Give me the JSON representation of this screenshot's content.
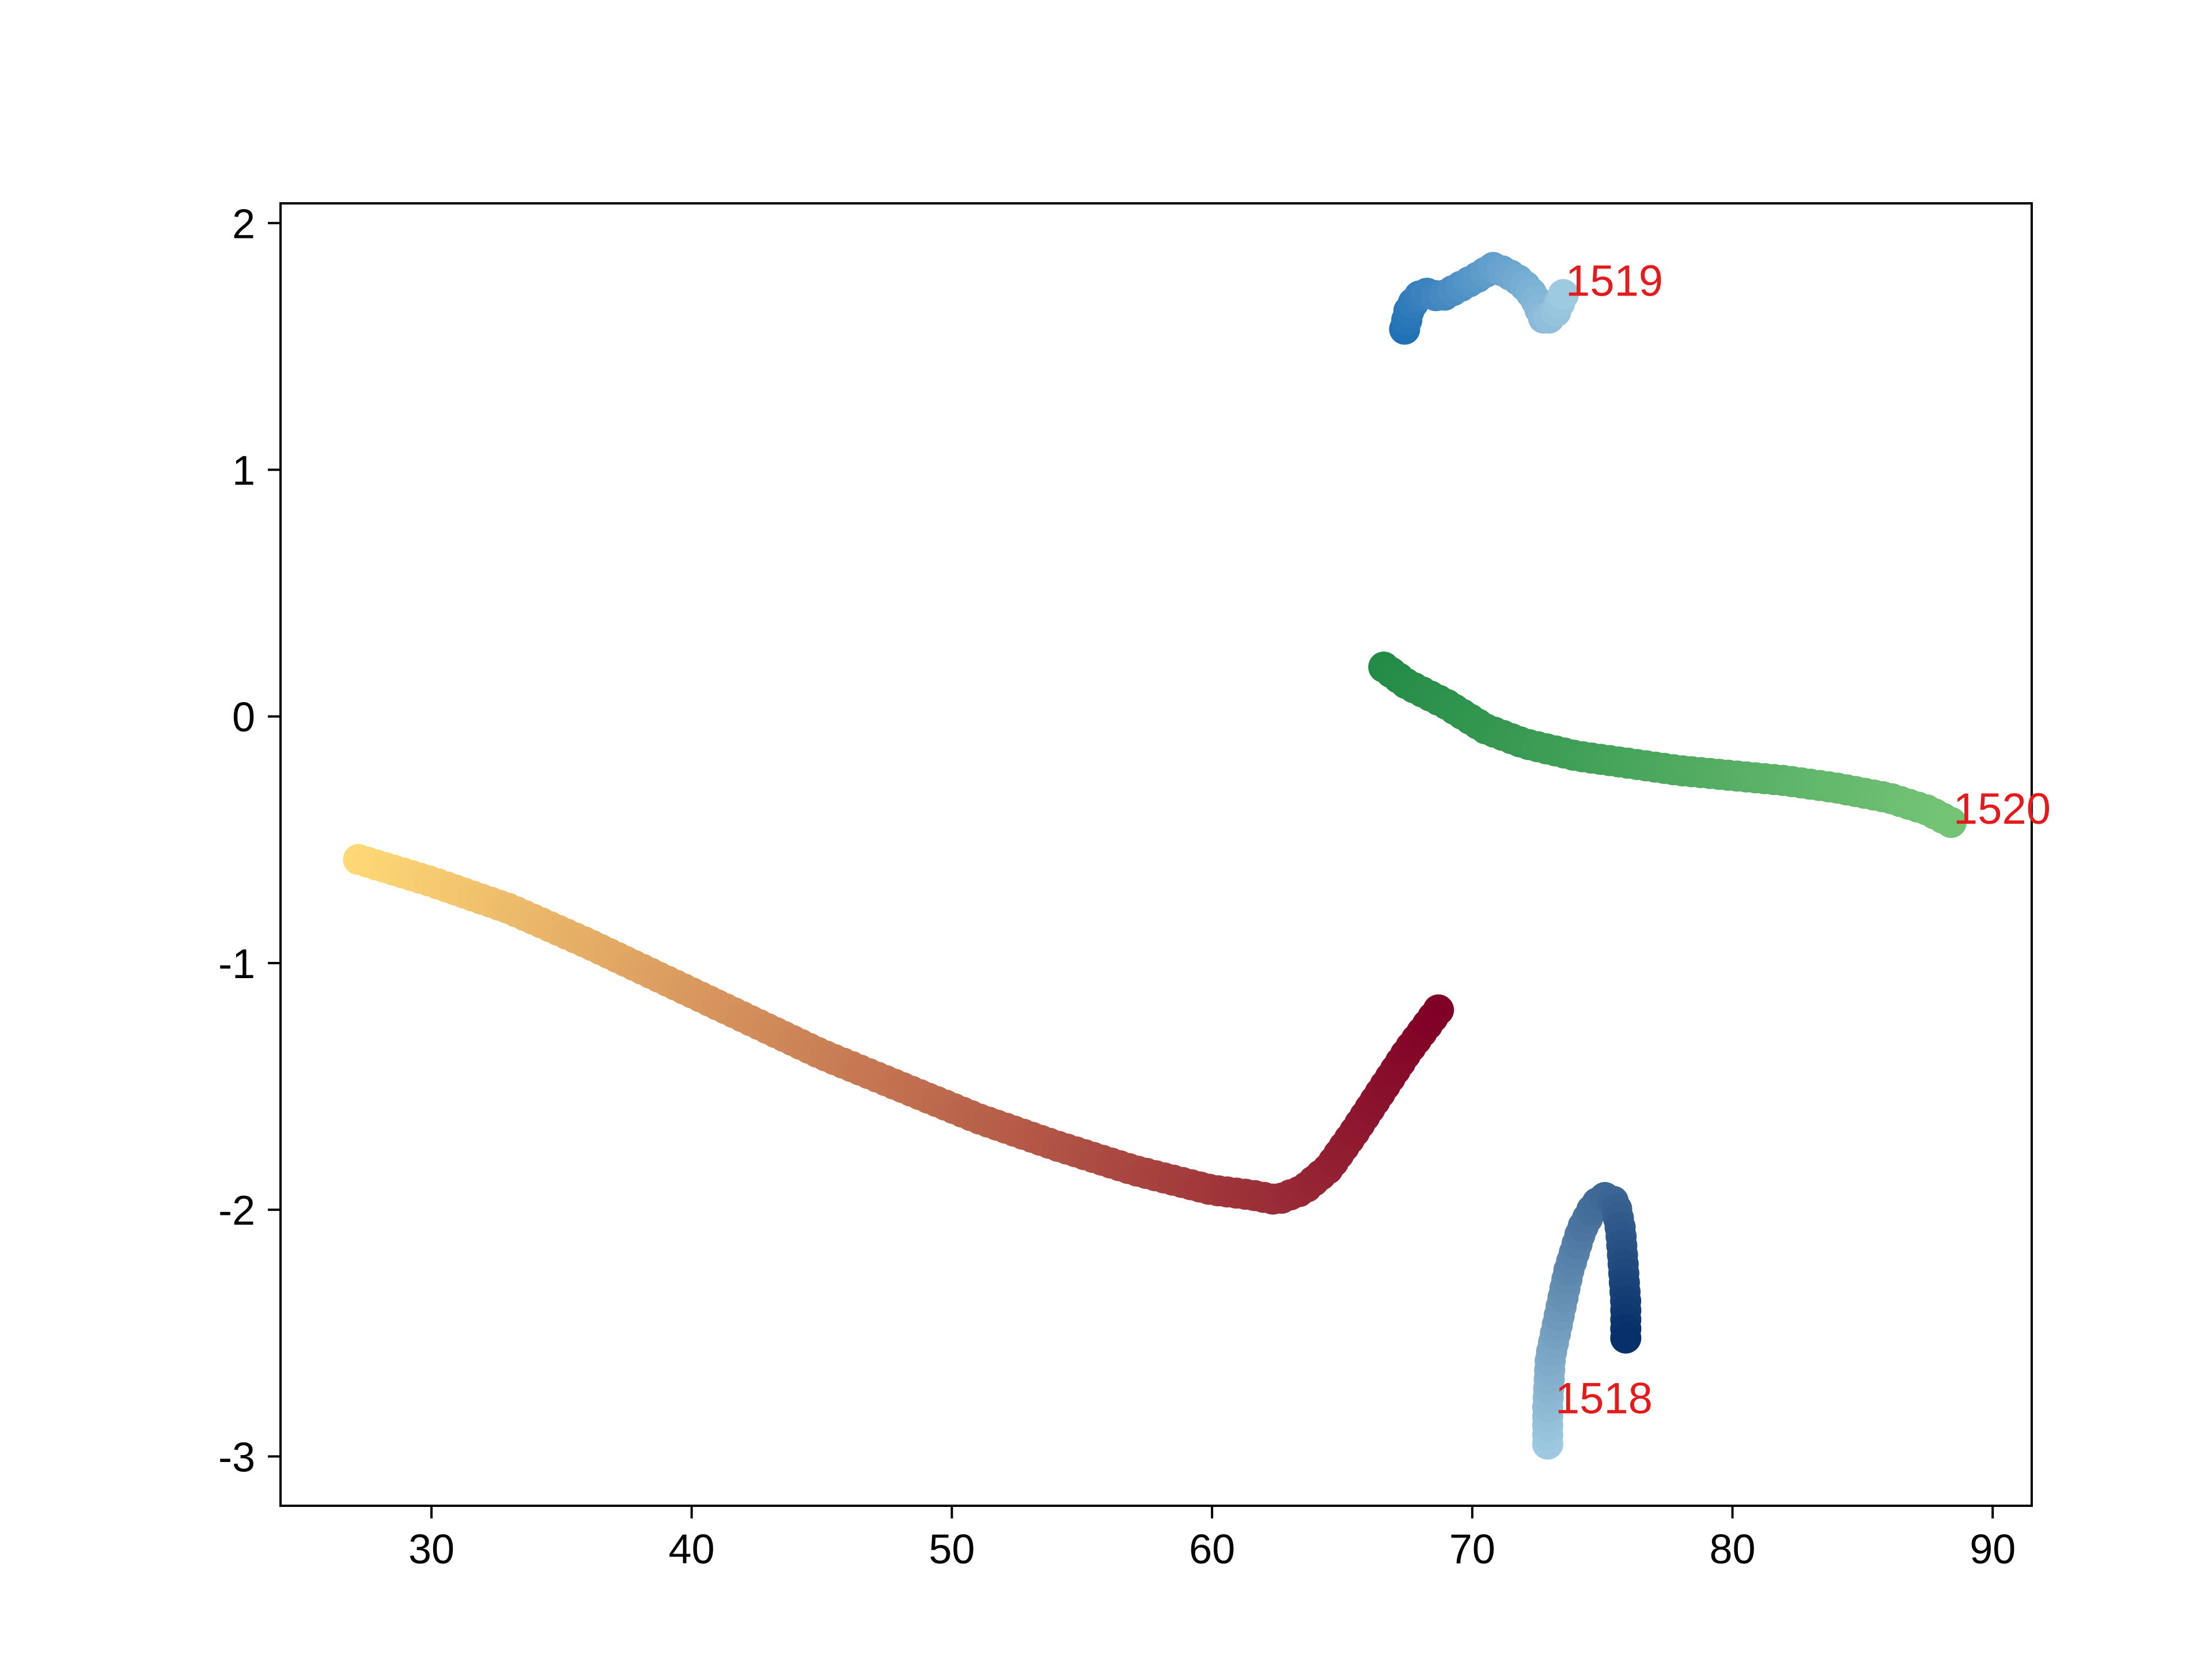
{
  "chart_data": {
    "type": "scatter",
    "title": "",
    "xlabel": "",
    "ylabel": "",
    "xlim": [
      24.2,
      91.5
    ],
    "ylim": [
      -3.2,
      2.08
    ],
    "xticks": [
      30,
      40,
      50,
      60,
      70,
      80,
      90
    ],
    "yticks": [
      2,
      1,
      0,
      -1,
      -2,
      -3
    ],
    "grid": false,
    "legend": "none",
    "series": [
      {
        "colormap": "YlOrRd",
        "color_start": "#fed976",
        "color_end": "#800026",
        "x": [
          27.2,
          30,
          33,
          36,
          39,
          42,
          45,
          48,
          51,
          54,
          57,
          60,
          61.5,
          62.5,
          63.5,
          64.5,
          65.5,
          66.5,
          67.5,
          68.7
        ],
        "y": [
          -0.58,
          -0.67,
          -0.78,
          -0.92,
          -1.07,
          -1.22,
          -1.37,
          -1.5,
          -1.63,
          -1.74,
          -1.84,
          -1.92,
          -1.94,
          -1.96,
          -1.92,
          -1.83,
          -1.68,
          -1.52,
          -1.36,
          -1.19
        ]
      },
      {
        "name": "1520",
        "colormap": "Greens",
        "color_start": "#238b45",
        "color_end": "#74c476",
        "x": [
          66.6,
          67.5,
          69,
          70.5,
          72,
          74,
          76,
          78,
          80,
          82,
          84,
          86,
          87.5,
          88.4
        ],
        "y": [
          0.2,
          0.13,
          0.05,
          -0.05,
          -0.11,
          -0.16,
          -0.19,
          -0.22,
          -0.24,
          -0.26,
          -0.29,
          -0.33,
          -0.38,
          -0.43
        ]
      },
      {
        "name": "1519",
        "colormap": "Blues",
        "color_start": "#2171b5",
        "color_end": "#9ecae1",
        "x": [
          67.4,
          67.6,
          68.1,
          68.8,
          69.5,
          70.2,
          70.8,
          71.3,
          71.9,
          72.4,
          72.8,
          73.2,
          73.5
        ],
        "y": [
          1.57,
          1.66,
          1.72,
          1.7,
          1.74,
          1.78,
          1.82,
          1.8,
          1.76,
          1.7,
          1.6,
          1.64,
          1.71
        ]
      },
      {
        "name": "1518",
        "colormap": "Blues",
        "color_start": "#9ecae1",
        "color_end": "#08306b",
        "x": [
          72.9,
          72.9,
          73.0,
          73.3,
          73.7,
          74.2,
          74.7,
          75.1,
          75.5,
          75.7,
          75.8,
          75.9,
          75.9
        ],
        "y": [
          -2.95,
          -2.8,
          -2.6,
          -2.45,
          -2.25,
          -2.08,
          -1.98,
          -1.95,
          -1.97,
          -2.08,
          -2.22,
          -2.38,
          -2.52
        ]
      }
    ],
    "annotations": [
      {
        "text": "1519",
        "x": 73.5,
        "y": 1.71,
        "color": "#e41a1c"
      },
      {
        "text": "1520",
        "x": 88.4,
        "y": -0.43,
        "color": "#e41a1c"
      },
      {
        "text": "1518",
        "x": 73.1,
        "y": -2.82,
        "color": "#e41a1c"
      }
    ]
  }
}
